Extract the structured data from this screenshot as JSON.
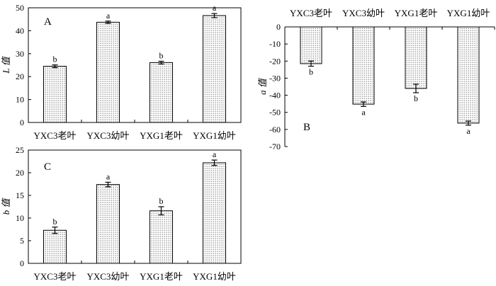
{
  "chart_data": [
    {
      "panel": "A",
      "type": "bar",
      "ylabel": "L 值",
      "ylim": [
        0,
        50
      ],
      "yticks": [
        0,
        10,
        20,
        30,
        40,
        50
      ],
      "categories": [
        "YXC3老叶",
        "YXC3幼叶",
        "YXG1老叶",
        "YXG1幼叶"
      ],
      "values": [
        24.5,
        43.7,
        26.1,
        46.6
      ],
      "errors": [
        0.6,
        0.5,
        0.6,
        0.9
      ],
      "letters": [
        "b",
        "a",
        "b",
        "a"
      ]
    },
    {
      "panel": "B",
      "type": "bar",
      "ylabel": "a 值",
      "ylim": [
        -70,
        0
      ],
      "yticks": [
        0,
        -10,
        -20,
        -30,
        -40,
        -50,
        -60,
        -70
      ],
      "categories": [
        "YXC3老叶",
        "YXC3幼叶",
        "YXG1老叶",
        "YXG1幼叶"
      ],
      "values": [
        -21.5,
        -45.2,
        -36.0,
        -56.3
      ],
      "errors": [
        1.5,
        1.3,
        2.5,
        1.2
      ],
      "letters": [
        "b",
        "a",
        "b",
        "a"
      ]
    },
    {
      "panel": "C",
      "type": "bar",
      "ylabel": "b 值",
      "ylim": [
        0,
        25
      ],
      "yticks": [
        0,
        5,
        10,
        15,
        20,
        25
      ],
      "categories": [
        "YXC3老叶",
        "YXC3幼叶",
        "YXG1老叶",
        "YXG1幼叶"
      ],
      "values": [
        7.3,
        17.4,
        11.6,
        22.2
      ],
      "errors": [
        0.7,
        0.5,
        0.9,
        0.6
      ],
      "letters": [
        "b",
        "a",
        "b",
        "a"
      ]
    }
  ]
}
